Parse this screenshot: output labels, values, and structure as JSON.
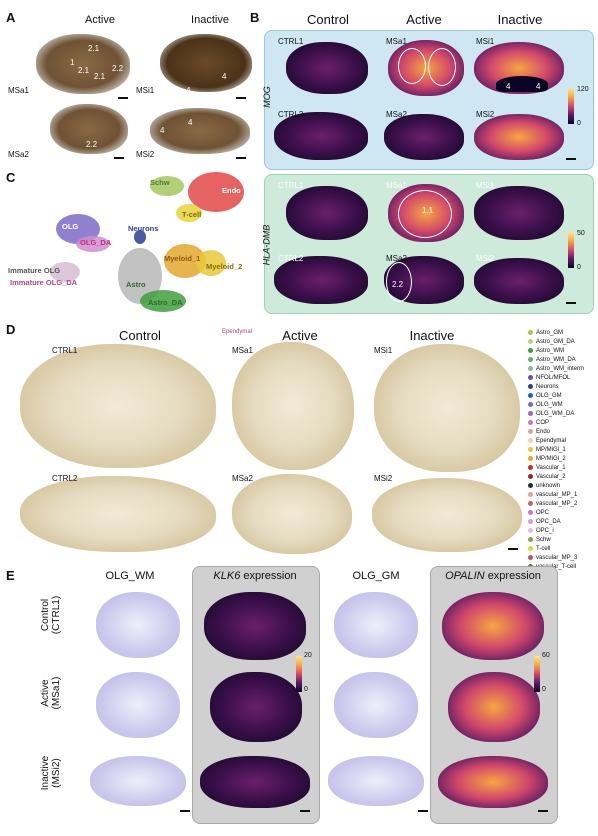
{
  "panel_A": {
    "label": "A",
    "headers": [
      "Active",
      "Inactive"
    ],
    "samples": [
      "MSa1",
      "MSa2",
      "MSi1",
      "MSi2"
    ],
    "annotations": [
      "2.1",
      "1",
      "2.1",
      "2.1",
      "2.2",
      "2.2",
      "4",
      "4",
      "4",
      "4"
    ]
  },
  "panel_B": {
    "label": "B",
    "headers": [
      "Control",
      "Active",
      "Inactive"
    ],
    "top_gene": "MOG",
    "top_samples": [
      "CTRL1",
      "MSa1",
      "MSi1",
      "CTRL2",
      "MSa2",
      "MSi2"
    ],
    "top_cbar": {
      "max": "120",
      "min": "0"
    },
    "top_annotations": [
      "4",
      "4"
    ],
    "bottom_gene": "HLA-DMB",
    "bottom_samples": [
      "CTRL1",
      "MSa1",
      "MSi1",
      "CTRL2",
      "MSa2",
      "MSi2"
    ],
    "bottom_cbar": {
      "max": "50",
      "min": "0"
    },
    "bottom_annotations": [
      "1.1",
      "2.2"
    ]
  },
  "panel_C": {
    "label": "C",
    "clusters": [
      "Schw",
      "Endo",
      "T-cell",
      "OLG",
      "OLG_DA",
      "Neurons",
      "Myeloid_1",
      "Myeloid_2",
      "Immature OLG",
      "Immature OLG_DA",
      "Astro",
      "Astro_DA"
    ]
  },
  "panel_D": {
    "label": "D",
    "headers": [
      "Control",
      "Active",
      "Inactive"
    ],
    "samples": [
      "CTRL1",
      "MSa1",
      "MSi1",
      "CTRL2",
      "MSa2",
      "MSi2"
    ],
    "tag": "Ependymal",
    "legend": [
      {
        "name": "Astro_GM",
        "color": "#9fc94a"
      },
      {
        "name": "Astro_GM_DA",
        "color": "#b7d97a"
      },
      {
        "name": "Astro_WM",
        "color": "#3f9e3c"
      },
      {
        "name": "Astro_WM_DA",
        "color": "#63b25e"
      },
      {
        "name": "Astro_WM_interm",
        "color": "#7cc28a"
      },
      {
        "name": "NFOL/MFOL",
        "color": "#6a4fb0"
      },
      {
        "name": "Neurons",
        "color": "#2d3f8f"
      },
      {
        "name": "OLG_GM",
        "color": "#2b5fa8"
      },
      {
        "name": "OLG_WM",
        "color": "#7d6bc6"
      },
      {
        "name": "OLG_WM_DA",
        "color": "#a064b8"
      },
      {
        "name": "COP",
        "color": "#c47ac2"
      },
      {
        "name": "Endo",
        "color": "#d6a3a3"
      },
      {
        "name": "Ependymal",
        "color": "#e7d9a8"
      },
      {
        "name": "MP/MiGl_1",
        "color": "#e8c93a"
      },
      {
        "name": "MP/MiGl_2",
        "color": "#e3a72e"
      },
      {
        "name": "Vascular_1",
        "color": "#c4302b"
      },
      {
        "name": "Vascular_2",
        "color": "#8f2b25"
      },
      {
        "name": "unknown",
        "color": "#2b2b2b"
      },
      {
        "name": "vascular_MP_1",
        "color": "#e5a0a0"
      },
      {
        "name": "vascular_MP_2",
        "color": "#c96262"
      },
      {
        "name": "OPC",
        "color": "#c977c8"
      },
      {
        "name": "OPC_DA",
        "color": "#d99ad6"
      },
      {
        "name": "OPC_i",
        "color": "#e6bde4"
      },
      {
        "name": "Schw",
        "color": "#7aa84a"
      },
      {
        "name": "T-cell",
        "color": "#e8d43a"
      },
      {
        "name": "vascular_MP_3",
        "color": "#b8506a"
      },
      {
        "name": "vascular_T-cell",
        "color": "#6c7a3a"
      }
    ]
  },
  "panel_E": {
    "label": "E",
    "col_headers": [
      "OLG_WM",
      "expression",
      "OLG_GM",
      "expression"
    ],
    "gene1": "KLK6",
    "gene2": "OPALIN",
    "rows": [
      "Control\n(CTRL1)",
      "Active\n(MSa1)",
      "Inactive\n(MSi2)"
    ],
    "cbar1": {
      "max": "20",
      "min": "0"
    },
    "cbar2": {
      "max": "60",
      "min": "0"
    }
  }
}
